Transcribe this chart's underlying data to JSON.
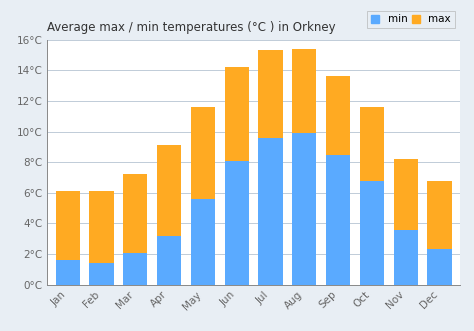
{
  "months": [
    "Jan",
    "Feb",
    "Mar",
    "Apr",
    "May",
    "Jun",
    "Jul",
    "Aug",
    "Sep",
    "Oct",
    "Nov",
    "Dec"
  ],
  "min_temps": [
    1.6,
    1.4,
    2.1,
    3.2,
    5.6,
    8.1,
    9.6,
    9.9,
    8.5,
    6.8,
    3.6,
    2.3
  ],
  "max_temps": [
    6.1,
    6.1,
    7.2,
    9.1,
    11.6,
    14.2,
    15.3,
    15.4,
    13.6,
    11.6,
    8.2,
    6.8
  ],
  "min_color": "#5aaaff",
  "max_color": "#ffaa22",
  "title": "Average max / min temperatures (°C ) in Orkney",
  "title_fontsize": 8.5,
  "bg_color": "#e8eef4",
  "plot_bg_color": "#ffffff",
  "grid_color": "#c0ccd8",
  "ylim": [
    0,
    16
  ],
  "yticks": [
    0,
    2,
    4,
    6,
    8,
    10,
    12,
    14,
    16
  ],
  "bar_width": 0.72,
  "legend_labels": [
    "min",
    "max"
  ]
}
